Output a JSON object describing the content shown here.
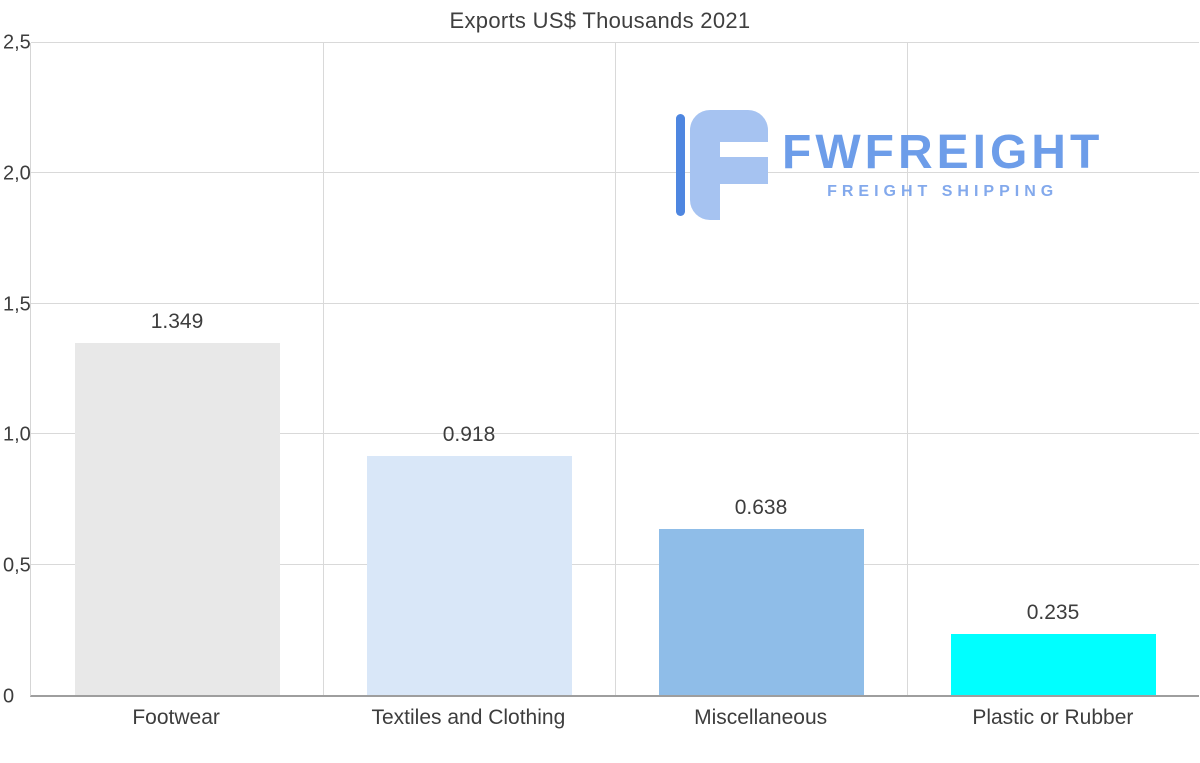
{
  "chart_data": {
    "type": "bar",
    "title": "Exports US$ Thousands 2021",
    "categories": [
      "Footwear",
      "Textiles and Clothing",
      "Miscellaneous",
      "Plastic or Rubber"
    ],
    "values": [
      1.349,
      0.918,
      0.638,
      0.235
    ],
    "value_labels": [
      "1.349",
      "0.918",
      "0.638",
      "0.235"
    ],
    "bar_colors": [
      "#e8e8e8",
      "#d9e7f8",
      "#8fbde8",
      "#00ffff"
    ],
    "xlabel": "",
    "ylabel": "",
    "ylim": [
      0,
      2.5
    ],
    "ytick_values": [
      0,
      0.5,
      1.0,
      1.5,
      2.0,
      2.5
    ],
    "ytick_labels": [
      "0",
      "0,5",
      "1,0",
      "1,5",
      "2,0",
      "2,5"
    ],
    "grid": true,
    "legend": "none"
  },
  "watermark": {
    "brand": "FWFREIGHT",
    "tagline": "FREIGHT SHIPPING",
    "brand_color": "#6d9de9",
    "tagline_color": "#83a9ec",
    "icon_main_color": "#a6c3f1",
    "icon_accent_color": "#4e86e0"
  },
  "colors": {
    "background": "#ffffff",
    "gridline": "#d9d9d9",
    "axis_line": "#9e9e9e",
    "text": "#3d3d3d"
  }
}
